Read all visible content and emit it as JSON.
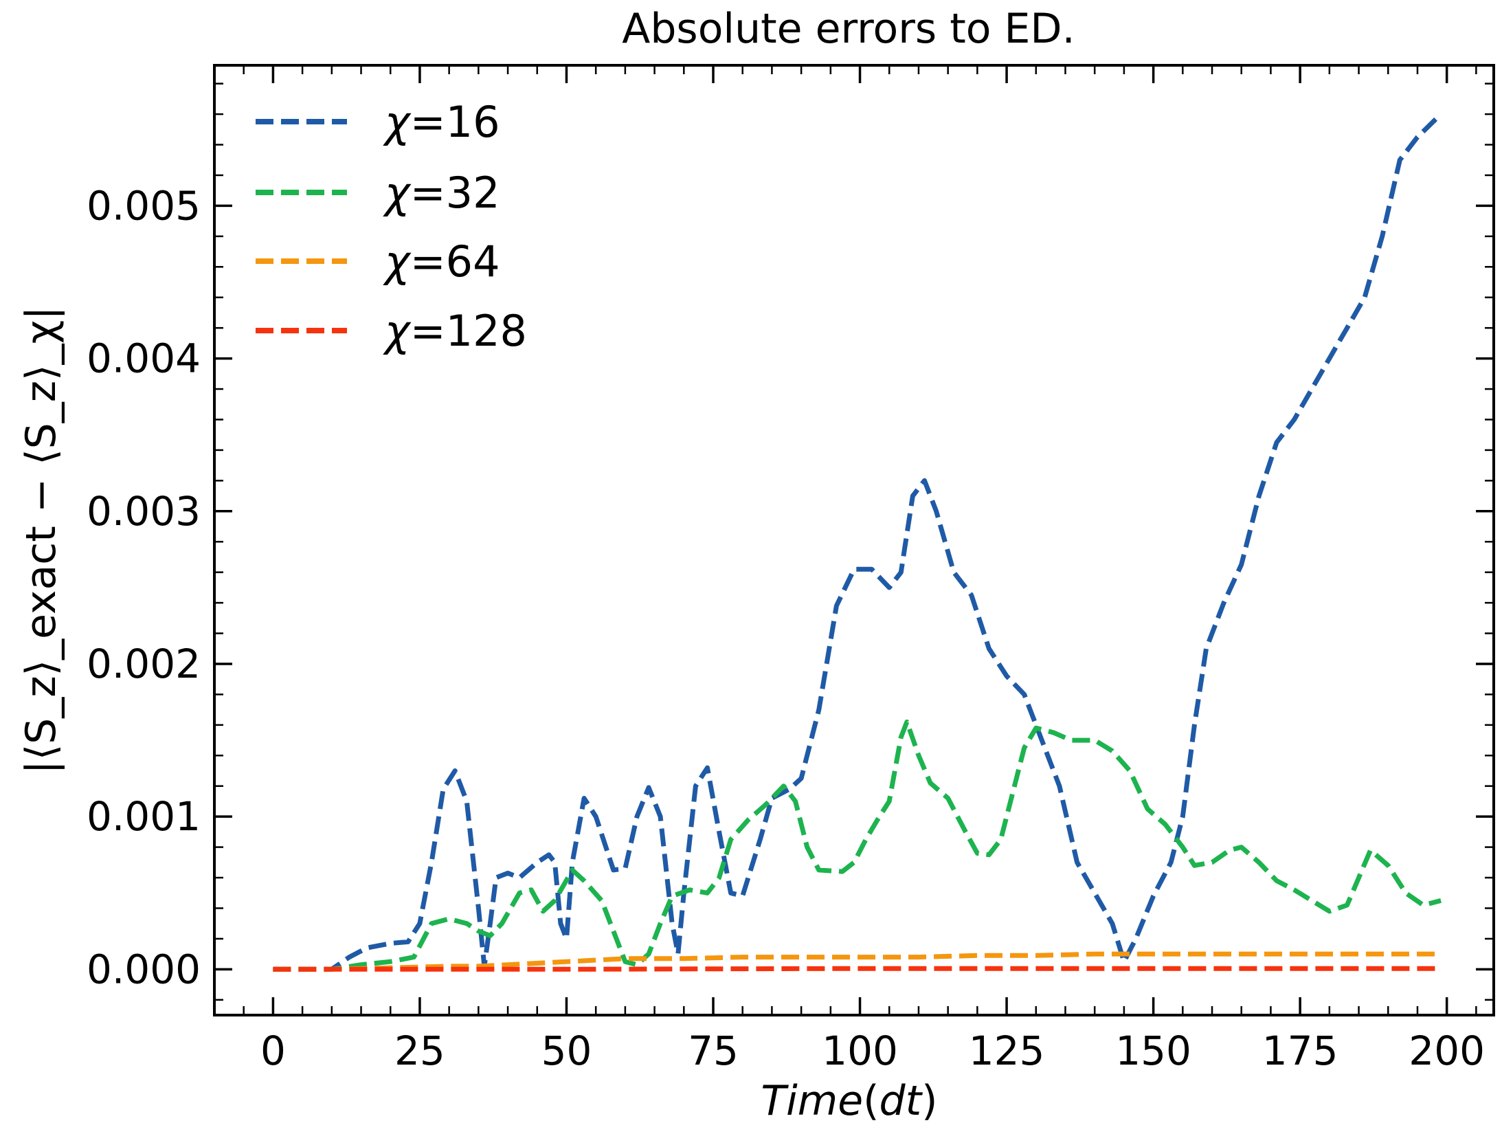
{
  "chart_data": {
    "type": "line",
    "title": "Absolute errors to ED.",
    "xlabel": "Time(dt)",
    "ylabel": "|⟨S_z⟩_exact − ⟨S_z⟩_χ|",
    "xlim": [
      -10,
      208
    ],
    "ylim": [
      -0.0003,
      0.00592
    ],
    "xticks": [
      0,
      25,
      50,
      75,
      100,
      125,
      150,
      175,
      200
    ],
    "xtick_labels": [
      "0",
      "25",
      "50",
      "75",
      "100",
      "125",
      "150",
      "175",
      "200"
    ],
    "yticks": [
      0.0,
      0.001,
      0.002,
      0.003,
      0.004,
      0.005
    ],
    "ytick_labels": [
      "0.000",
      "0.001",
      "0.002",
      "0.003",
      "0.004",
      "0.005"
    ],
    "grid": false,
    "legend_position": "upper-left",
    "series": [
      {
        "name": "χ=16",
        "legend_symbol": "χ",
        "legend_value": "=16",
        "color": "#1f5aa6",
        "points": [
          [
            0,
            0
          ],
          [
            10,
            0
          ],
          [
            13,
            8e-05
          ],
          [
            16,
            0.00014
          ],
          [
            20,
            0.00017
          ],
          [
            23,
            0.00018
          ],
          [
            25,
            0.0003
          ],
          [
            27,
            0.0007
          ],
          [
            29,
            0.00118
          ],
          [
            31,
            0.0013
          ],
          [
            33,
            0.0011
          ],
          [
            35,
            0.0004
          ],
          [
            36,
            2e-05
          ],
          [
            37,
            0.0003
          ],
          [
            38,
            0.0006
          ],
          [
            40,
            0.00063
          ],
          [
            42,
            0.0006
          ],
          [
            45,
            0.0007
          ],
          [
            47,
            0.00075
          ],
          [
            48,
            0.0007
          ],
          [
            49,
            0.0003
          ],
          [
            50,
            0.0002
          ],
          [
            51,
            0.0007
          ],
          [
            53,
            0.00112
          ],
          [
            55,
            0.001
          ],
          [
            58,
            0.00065
          ],
          [
            60,
            0.00066
          ],
          [
            62,
            0.001
          ],
          [
            64,
            0.00119
          ],
          [
            66,
            0.001
          ],
          [
            68,
            0.0003
          ],
          [
            69,
            0.0001
          ],
          [
            70,
            0.0005
          ],
          [
            72,
            0.0012
          ],
          [
            74,
            0.00132
          ],
          [
            76,
            0.0009
          ],
          [
            78,
            0.0005
          ],
          [
            80,
            0.00048
          ],
          [
            83,
            0.00085
          ],
          [
            85,
            0.00112
          ],
          [
            88,
            0.00118
          ],
          [
            90,
            0.00125
          ],
          [
            93,
            0.0017
          ],
          [
            96,
            0.00238
          ],
          [
            99,
            0.00262
          ],
          [
            102,
            0.00262
          ],
          [
            105,
            0.0025
          ],
          [
            107,
            0.0026
          ],
          [
            109,
            0.0031
          ],
          [
            111,
            0.0032
          ],
          [
            113,
            0.003
          ],
          [
            116,
            0.0026
          ],
          [
            119,
            0.00245
          ],
          [
            122,
            0.0021
          ],
          [
            125,
            0.00192
          ],
          [
            128,
            0.0018
          ],
          [
            131,
            0.0015
          ],
          [
            134,
            0.0012
          ],
          [
            137,
            0.0007
          ],
          [
            140,
            0.0005
          ],
          [
            143,
            0.0003
          ],
          [
            145,
            5e-05
          ],
          [
            147,
            0.0002
          ],
          [
            150,
            0.00048
          ],
          [
            153,
            0.0007
          ],
          [
            155,
            0.001
          ],
          [
            157,
            0.0016
          ],
          [
            159,
            0.0021
          ],
          [
            162,
            0.0024
          ],
          [
            165,
            0.00265
          ],
          [
            168,
            0.0031
          ],
          [
            171,
            0.00345
          ],
          [
            174,
            0.0036
          ],
          [
            177,
            0.0038
          ],
          [
            180,
            0.004
          ],
          [
            183,
            0.0042
          ],
          [
            186,
            0.0044
          ],
          [
            189,
            0.0048
          ],
          [
            192,
            0.0053
          ],
          [
            195,
            0.00545
          ],
          [
            199,
            0.0056
          ]
        ]
      },
      {
        "name": "χ=32",
        "legend_symbol": "χ",
        "legend_value": "=32",
        "color": "#1db34e",
        "points": [
          [
            0,
            0
          ],
          [
            10,
            0
          ],
          [
            15,
            3e-05
          ],
          [
            20,
            5e-05
          ],
          [
            24,
            8e-05
          ],
          [
            27,
            0.0003
          ],
          [
            30,
            0.00033
          ],
          [
            33,
            0.0003
          ],
          [
            35,
            0.00025
          ],
          [
            37,
            0.00022
          ],
          [
            39,
            0.0003
          ],
          [
            42,
            0.0005
          ],
          [
            44,
            0.00052
          ],
          [
            46,
            0.00038
          ],
          [
            48,
            0.00045
          ],
          [
            51,
            0.00065
          ],
          [
            53,
            0.00058
          ],
          [
            56,
            0.00045
          ],
          [
            58,
            0.00025
          ],
          [
            60,
            5e-05
          ],
          [
            62,
            3e-05
          ],
          [
            64,
            0.0001
          ],
          [
            66,
            0.0003
          ],
          [
            68,
            0.00048
          ],
          [
            71,
            0.00052
          ],
          [
            74,
            0.0005
          ],
          [
            76,
            0.0006
          ],
          [
            78,
            0.00085
          ],
          [
            81,
            0.00098
          ],
          [
            84,
            0.00108
          ],
          [
            87,
            0.0012
          ],
          [
            89,
            0.0011
          ],
          [
            91,
            0.0008
          ],
          [
            93,
            0.00065
          ],
          [
            97,
            0.00064
          ],
          [
            99,
            0.0007
          ],
          [
            101,
            0.00085
          ],
          [
            103,
            0.00098
          ],
          [
            105,
            0.0011
          ],
          [
            107,
            0.00152
          ],
          [
            108,
            0.00162
          ],
          [
            110,
            0.0014
          ],
          [
            112,
            0.00122
          ],
          [
            115,
            0.00112
          ],
          [
            118,
            0.0009
          ],
          [
            120,
            0.00076
          ],
          [
            122,
            0.00075
          ],
          [
            124,
            0.00085
          ],
          [
            126,
            0.00115
          ],
          [
            128,
            0.00145
          ],
          [
            130,
            0.00158
          ],
          [
            133,
            0.00155
          ],
          [
            136,
            0.0015
          ],
          [
            140,
            0.0015
          ],
          [
            143,
            0.00143
          ],
          [
            146,
            0.0013
          ],
          [
            149,
            0.00105
          ],
          [
            152,
            0.00095
          ],
          [
            155,
            0.0008
          ],
          [
            157,
            0.00068
          ],
          [
            160,
            0.0007
          ],
          [
            163,
            0.00078
          ],
          [
            165,
            0.0008
          ],
          [
            168,
            0.0007
          ],
          [
            171,
            0.00058
          ],
          [
            174,
            0.00052
          ],
          [
            177,
            0.00045
          ],
          [
            180,
            0.00038
          ],
          [
            183,
            0.00042
          ],
          [
            185,
            0.0006
          ],
          [
            187,
            0.00078
          ],
          [
            190,
            0.00068
          ],
          [
            193,
            0.0005
          ],
          [
            196,
            0.00042
          ],
          [
            199,
            0.00045
          ]
        ]
      },
      {
        "name": "χ=64",
        "legend_symbol": "χ",
        "legend_value": "=64",
        "color": "#f5960f",
        "points": [
          [
            0,
            0
          ],
          [
            10,
            0
          ],
          [
            20,
            1e-05
          ],
          [
            30,
            2e-05
          ],
          [
            35,
            2e-05
          ],
          [
            40,
            3e-05
          ],
          [
            45,
            4e-05
          ],
          [
            50,
            5e-05
          ],
          [
            55,
            6e-05
          ],
          [
            60,
            7e-05
          ],
          [
            65,
            7e-05
          ],
          [
            70,
            7e-05
          ],
          [
            80,
            8e-05
          ],
          [
            90,
            8e-05
          ],
          [
            100,
            8e-05
          ],
          [
            110,
            8e-05
          ],
          [
            120,
            9e-05
          ],
          [
            130,
            9e-05
          ],
          [
            140,
            0.0001
          ],
          [
            150,
            0.0001
          ],
          [
            160,
            0.0001
          ],
          [
            170,
            0.0001
          ],
          [
            180,
            0.0001
          ],
          [
            190,
            0.0001
          ],
          [
            199,
            0.0001
          ]
        ]
      },
      {
        "name": "χ=128",
        "legend_symbol": "χ",
        "legend_value": "=128",
        "color": "#f5330f",
        "points": [
          [
            0,
            0
          ],
          [
            50,
            0
          ],
          [
            100,
            5e-06
          ],
          [
            150,
            5e-06
          ],
          [
            199,
            5e-06
          ]
        ]
      }
    ]
  }
}
